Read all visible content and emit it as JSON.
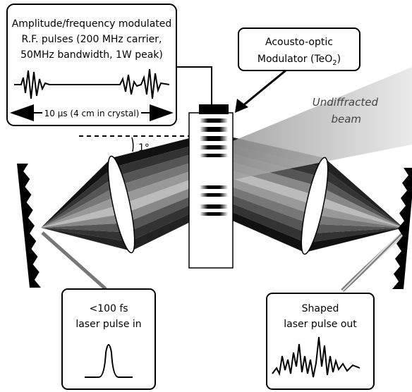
{
  "modulator_info": {
    "lines": [
      "Amplitude/frequency modulated",
      "R.F. pulses (200 MHz carrier,",
      "50MHz bandwidth, 1W peak)"
    ],
    "duration": "10 μs (4 cm in crystal)"
  },
  "aom_label": {
    "line1": "Acousto-optic",
    "line2": {
      "text": "Modulator (TeO",
      "subscript": "2",
      "suffix": ")"
    }
  },
  "undiffracted": [
    "Undiffracted",
    "beam"
  ],
  "angle": "1°",
  "input": [
    "<100 fs",
    "laser pulse in"
  ],
  "output": [
    "Shaped",
    "laser pulse out"
  ]
}
